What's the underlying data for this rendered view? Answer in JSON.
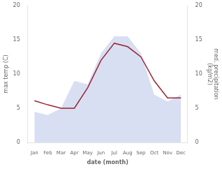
{
  "chart_data": {
    "type": "line",
    "categories": [
      "Jan",
      "Feb",
      "Mar",
      "Apr",
      "May",
      "Jun",
      "Jul",
      "Aug",
      "Sep",
      "Oct",
      "Nov",
      "Dec"
    ],
    "series": [
      {
        "name": "max temp (C)",
        "type": "line",
        "color": "#9b2335",
        "values": [
          6.1,
          5.5,
          5.0,
          5.0,
          8.0,
          12.0,
          14.5,
          14.0,
          12.5,
          9.0,
          6.5,
          6.5
        ]
      },
      {
        "name": "med. precipitation\n(kg/m2)",
        "type": "area",
        "color": "#b8c4e8",
        "axis": "y2",
        "values": [
          4.5,
          4.0,
          5.0,
          9.0,
          8.5,
          13.0,
          15.5,
          15.5,
          13.0,
          7.0,
          6.0,
          7.0
        ]
      }
    ],
    "xlabel": "date (month)",
    "ylabel": "max temp (C)",
    "y2label": "med. precipitation\n(kg/m2)",
    "ylim": [
      0,
      20
    ],
    "yticks": [
      0,
      5,
      10,
      15,
      20
    ],
    "y2lim": [
      0,
      20
    ],
    "y2ticks": [
      0,
      5,
      10,
      15,
      20
    ],
    "grid": false
  }
}
